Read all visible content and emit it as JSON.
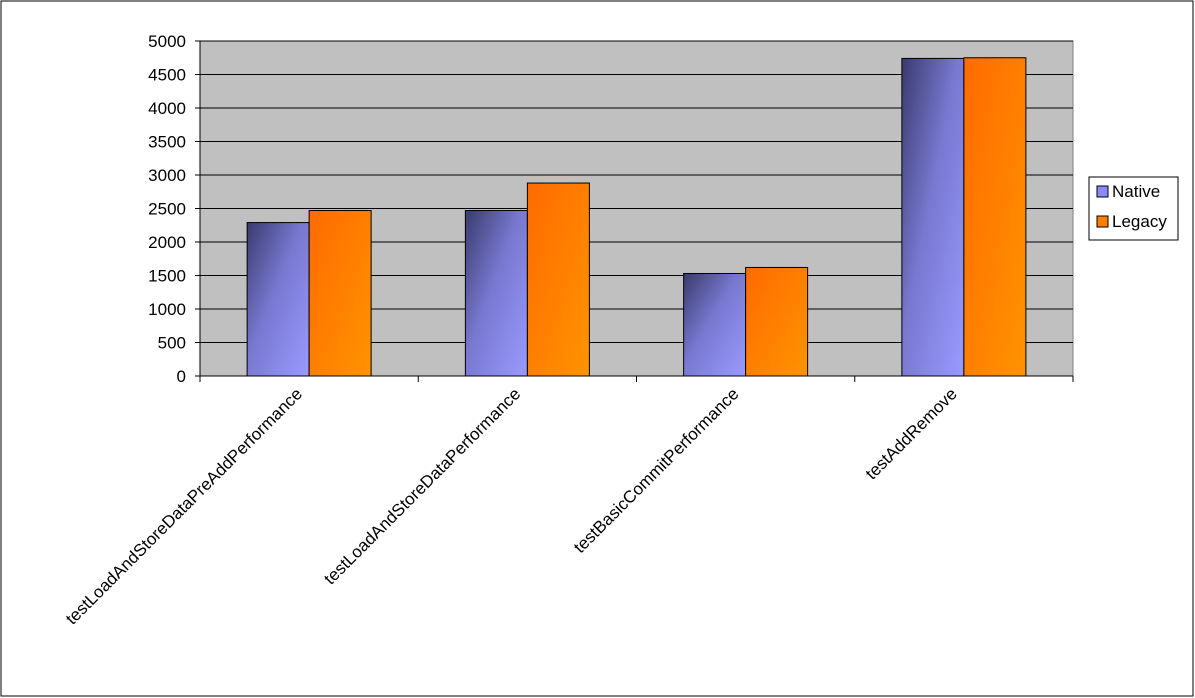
{
  "chart_data": {
    "type": "bar",
    "categories": [
      "testLoadAndStoreDataPreAddPerformance",
      "testLoadAndStoreDataPerformance",
      "testBasicCommitPerformance",
      "testAddRemove"
    ],
    "series": [
      {
        "name": "Native",
        "values": [
          2290,
          2470,
          1530,
          4740
        ],
        "color": "#8080ff"
      },
      {
        "name": "Legacy",
        "values": [
          2470,
          2880,
          1620,
          4750
        ],
        "color": "#ff8000"
      }
    ],
    "ylim": [
      0,
      5000
    ],
    "yticks": [
      "0",
      "500",
      "1000",
      "1500",
      "2000",
      "2500",
      "3000",
      "3500",
      "4000",
      "4500",
      "5000"
    ],
    "grid": true,
    "plot_background": "#c0c0c0",
    "legend_position": "right"
  }
}
